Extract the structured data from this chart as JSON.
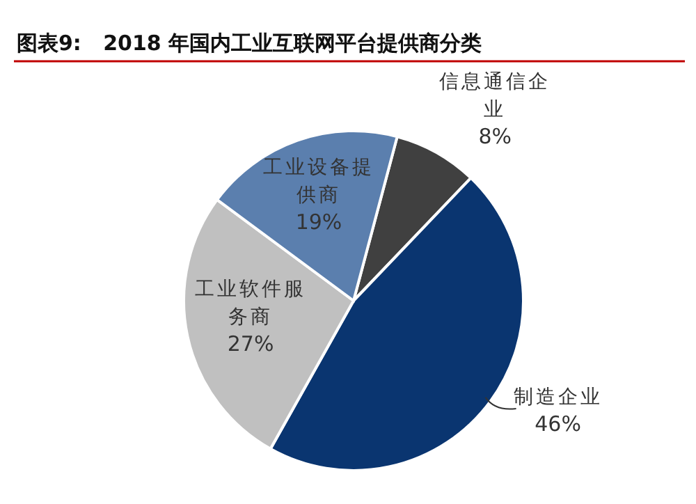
{
  "chart_data": {
    "type": "pie",
    "title": "图表9:   2018 年国内工业互联网平台提供商分类",
    "categories": [
      "信息通信企业",
      "制造企业",
      "工业软件服务商",
      "工业设备提供商"
    ],
    "values": [
      8,
      46,
      27,
      19
    ],
    "colors": [
      "#404040",
      "#0a3570",
      "#c0c0c0",
      "#5b7fae"
    ],
    "value_labels": [
      "8%",
      "46%",
      "27%",
      "19%"
    ]
  }
}
